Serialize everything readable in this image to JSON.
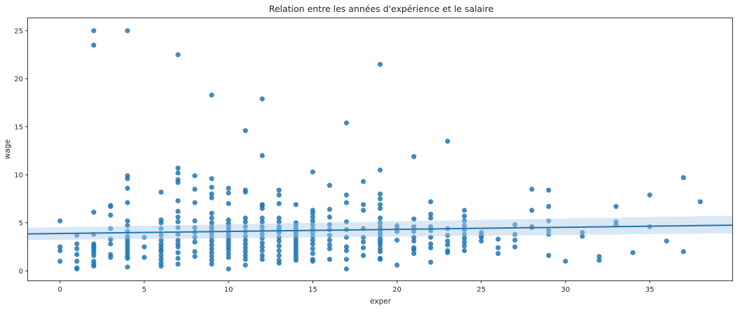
{
  "chart_data": {
    "type": "scatter",
    "title": "Relation entre les années d'expérience et le salaire",
    "xlabel": "exper",
    "ylabel": "wage",
    "xlim": [
      -1.9,
      39.9
    ],
    "ylim": [
      -1.0,
      26.3
    ],
    "xticks": [
      0,
      5,
      10,
      15,
      20,
      25,
      30,
      35
    ],
    "yticks": [
      0,
      5,
      10,
      15,
      20,
      25
    ],
    "grid": false,
    "legend": "none",
    "colors": {
      "points": "#1f77b4",
      "line": "#1f77b4",
      "band": "#aecde6"
    },
    "regression": {
      "x": [
        -1.9,
        39.9
      ],
      "y": [
        3.85,
        4.75
      ],
      "ci_lower": [
        3.2,
        3.9
      ],
      "ci_upper": [
        4.5,
        5.75
      ]
    },
    "points": [
      [
        0,
        5.2
      ],
      [
        0,
        2.5
      ],
      [
        0,
        2.1
      ],
      [
        0,
        1.0
      ],
      [
        1,
        3.7
      ],
      [
        1,
        2.8
      ],
      [
        1,
        2.3
      ],
      [
        1,
        1.7
      ],
      [
        1,
        1.0
      ],
      [
        1,
        0.3
      ],
      [
        1,
        0.2
      ],
      [
        2,
        25.0
      ],
      [
        2,
        23.5
      ],
      [
        2,
        6.1
      ],
      [
        2,
        3.8
      ],
      [
        2,
        2.8
      ],
      [
        2,
        2.6
      ],
      [
        2,
        2.4
      ],
      [
        2,
        2.2
      ],
      [
        2,
        1.9
      ],
      [
        2,
        1.6
      ],
      [
        2,
        1.0
      ],
      [
        2,
        0.7
      ],
      [
        2,
        0.5
      ],
      [
        3,
        6.8
      ],
      [
        3,
        6.7
      ],
      [
        3,
        5.8
      ],
      [
        3,
        4.4
      ],
      [
        3,
        3.3
      ],
      [
        3,
        2.8
      ],
      [
        3,
        1.7
      ],
      [
        3,
        1.4
      ],
      [
        4,
        25.0
      ],
      [
        4,
        9.9
      ],
      [
        4,
        9.6
      ],
      [
        4,
        8.6
      ],
      [
        4,
        7.1
      ],
      [
        4,
        5.2
      ],
      [
        4,
        4.7
      ],
      [
        4,
        4.1
      ],
      [
        4,
        3.6
      ],
      [
        4,
        3.3
      ],
      [
        4,
        3.0
      ],
      [
        4,
        2.7
      ],
      [
        4,
        2.4
      ],
      [
        4,
        2.1
      ],
      [
        4,
        1.8
      ],
      [
        4,
        1.5
      ],
      [
        4,
        1.3
      ],
      [
        4,
        0.4
      ],
      [
        5,
        3.5
      ],
      [
        5,
        2.5
      ],
      [
        5,
        1.4
      ],
      [
        6,
        8.2
      ],
      [
        6,
        5.3
      ],
      [
        6,
        5.0
      ],
      [
        6,
        4.4
      ],
      [
        6,
        3.7
      ],
      [
        6,
        3.2
      ],
      [
        6,
        2.8
      ],
      [
        6,
        2.5
      ],
      [
        6,
        2.2
      ],
      [
        6,
        2.0
      ],
      [
        6,
        1.6
      ],
      [
        6,
        1.2
      ],
      [
        6,
        0.8
      ],
      [
        6,
        0.5
      ],
      [
        7,
        22.5
      ],
      [
        7,
        10.7
      ],
      [
        7,
        10.2
      ],
      [
        7,
        9.5
      ],
      [
        7,
        9.2
      ],
      [
        7,
        7.3
      ],
      [
        7,
        6.2
      ],
      [
        7,
        5.6
      ],
      [
        7,
        5.1
      ],
      [
        7,
        4.5
      ],
      [
        7,
        3.8
      ],
      [
        7,
        3.2
      ],
      [
        7,
        2.8
      ],
      [
        7,
        2.5
      ],
      [
        7,
        1.9
      ],
      [
        7,
        1.3
      ],
      [
        7,
        0.7
      ],
      [
        8,
        9.9
      ],
      [
        8,
        8.5
      ],
      [
        8,
        7.1
      ],
      [
        8,
        5.2
      ],
      [
        8,
        4.5
      ],
      [
        8,
        4.0
      ],
      [
        8,
        3.5
      ],
      [
        8,
        3.0
      ],
      [
        8,
        2.0
      ],
      [
        8,
        1.5
      ],
      [
        9,
        18.3
      ],
      [
        9,
        9.6
      ],
      [
        9,
        8.7
      ],
      [
        9,
        8.0
      ],
      [
        9,
        7.6
      ],
      [
        9,
        6.0
      ],
      [
        9,
        5.5
      ],
      [
        9,
        5.0
      ],
      [
        9,
        4.6
      ],
      [
        9,
        4.3
      ],
      [
        9,
        3.9
      ],
      [
        9,
        3.5
      ],
      [
        9,
        3.1
      ],
      [
        9,
        2.7
      ],
      [
        9,
        2.3
      ],
      [
        9,
        1.9
      ],
      [
        9,
        1.5
      ],
      [
        9,
        1.1
      ],
      [
        9,
        0.7
      ],
      [
        10,
        8.6
      ],
      [
        10,
        8.1
      ],
      [
        10,
        7.0
      ],
      [
        10,
        5.3
      ],
      [
        10,
        4.9
      ],
      [
        10,
        4.6
      ],
      [
        10,
        4.3
      ],
      [
        10,
        4.0
      ],
      [
        10,
        3.7
      ],
      [
        10,
        3.4
      ],
      [
        10,
        3.1
      ],
      [
        10,
        2.8
      ],
      [
        10,
        2.5
      ],
      [
        10,
        2.2
      ],
      [
        10,
        1.8
      ],
      [
        10,
        1.4
      ],
      [
        10,
        0.2
      ],
      [
        11,
        14.6
      ],
      [
        11,
        8.4
      ],
      [
        11,
        8.2
      ],
      [
        11,
        5.5
      ],
      [
        11,
        5.1
      ],
      [
        11,
        4.6
      ],
      [
        11,
        4.1
      ],
      [
        11,
        3.6
      ],
      [
        11,
        3.2
      ],
      [
        11,
        2.8
      ],
      [
        11,
        2.4
      ],
      [
        11,
        2.0
      ],
      [
        11,
        1.6
      ],
      [
        11,
        1.2
      ],
      [
        11,
        0.6
      ],
      [
        12,
        17.9
      ],
      [
        12,
        12.0
      ],
      [
        12,
        6.9
      ],
      [
        12,
        6.8
      ],
      [
        12,
        6.5
      ],
      [
        12,
        5.5
      ],
      [
        12,
        5.1
      ],
      [
        12,
        4.6
      ],
      [
        12,
        4.2
      ],
      [
        12,
        3.8
      ],
      [
        12,
        3.4
      ],
      [
        12,
        2.9
      ],
      [
        12,
        2.5
      ],
      [
        12,
        2.1
      ],
      [
        12,
        1.6
      ],
      [
        12,
        1.2
      ],
      [
        13,
        8.4
      ],
      [
        13,
        7.9
      ],
      [
        13,
        7.0
      ],
      [
        13,
        5.5
      ],
      [
        13,
        5.1
      ],
      [
        13,
        4.6
      ],
      [
        13,
        4.3
      ],
      [
        13,
        4.0
      ],
      [
        13,
        3.5
      ],
      [
        13,
        3.1
      ],
      [
        13,
        2.6
      ],
      [
        13,
        2.1
      ],
      [
        13,
        1.6
      ],
      [
        13,
        1.1
      ],
      [
        13,
        0.8
      ],
      [
        14,
        6.9
      ],
      [
        14,
        5.0
      ],
      [
        14,
        4.7
      ],
      [
        14,
        4.4
      ],
      [
        14,
        4.1
      ],
      [
        14,
        3.8
      ],
      [
        14,
        3.5
      ],
      [
        14,
        3.2
      ],
      [
        14,
        2.9
      ],
      [
        14,
        2.6
      ],
      [
        14,
        2.3
      ],
      [
        14,
        2.0
      ],
      [
        14,
        1.7
      ],
      [
        14,
        1.4
      ],
      [
        14,
        1.1
      ],
      [
        15,
        10.3
      ],
      [
        15,
        6.3
      ],
      [
        15,
        6.0
      ],
      [
        15,
        5.6
      ],
      [
        15,
        5.2
      ],
      [
        15,
        4.8
      ],
      [
        15,
        4.4
      ],
      [
        15,
        4.0
      ],
      [
        15,
        3.6
      ],
      [
        15,
        3.2
      ],
      [
        15,
        2.8
      ],
      [
        15,
        2.3
      ],
      [
        15,
        1.8
      ],
      [
        15,
        1.2
      ],
      [
        15,
        1.0
      ],
      [
        16,
        8.9
      ],
      [
        16,
        6.4
      ],
      [
        16,
        5.6
      ],
      [
        16,
        4.8
      ],
      [
        16,
        4.3
      ],
      [
        16,
        3.7
      ],
      [
        16,
        3.2
      ],
      [
        16,
        2.7
      ],
      [
        16,
        2.3
      ],
      [
        16,
        1.2
      ],
      [
        17,
        15.4
      ],
      [
        17,
        7.9
      ],
      [
        17,
        7.1
      ],
      [
        17,
        5.1
      ],
      [
        17,
        4.3
      ],
      [
        17,
        3.5
      ],
      [
        17,
        2.5
      ],
      [
        17,
        2.1
      ],
      [
        17,
        1.2
      ],
      [
        17,
        0.2
      ],
      [
        18,
        9.3
      ],
      [
        18,
        6.9
      ],
      [
        18,
        6.3
      ],
      [
        18,
        4.4
      ],
      [
        18,
        3.5
      ],
      [
        18,
        3.0
      ],
      [
        18,
        2.4
      ],
      [
        18,
        1.6
      ],
      [
        19,
        21.5
      ],
      [
        19,
        10.5
      ],
      [
        19,
        8.0
      ],
      [
        19,
        7.5
      ],
      [
        19,
        6.9
      ],
      [
        19,
        6.5
      ],
      [
        19,
        5.5
      ],
      [
        19,
        5.0
      ],
      [
        19,
        4.6
      ],
      [
        19,
        4.3
      ],
      [
        19,
        4.0
      ],
      [
        19,
        3.7
      ],
      [
        19,
        3.3
      ],
      [
        19,
        3.0
      ],
      [
        19,
        2.7
      ],
      [
        19,
        2.3
      ],
      [
        19,
        2.0
      ],
      [
        19,
        1.3
      ],
      [
        19,
        1.2
      ],
      [
        20,
        4.7
      ],
      [
        20,
        4.4
      ],
      [
        20,
        4.1
      ],
      [
        20,
        3.2
      ],
      [
        20,
        0.6
      ],
      [
        21,
        11.9
      ],
      [
        21,
        5.4
      ],
      [
        21,
        4.6
      ],
      [
        21,
        4.1
      ],
      [
        21,
        3.5
      ],
      [
        21,
        3.1
      ],
      [
        21,
        2.4
      ],
      [
        21,
        2.2
      ],
      [
        21,
        1.8
      ],
      [
        22,
        7.2
      ],
      [
        22,
        5.9
      ],
      [
        22,
        5.5
      ],
      [
        22,
        4.6
      ],
      [
        22,
        4.2
      ],
      [
        22,
        3.5
      ],
      [
        22,
        2.8
      ],
      [
        22,
        2.4
      ],
      [
        22,
        0.9
      ],
      [
        23,
        13.5
      ],
      [
        23,
        4.4
      ],
      [
        23,
        3.7
      ],
      [
        23,
        3.1
      ],
      [
        23,
        2.7
      ],
      [
        23,
        2.1
      ],
      [
        23,
        1.9
      ],
      [
        24,
        6.3
      ],
      [
        24,
        5.7
      ],
      [
        24,
        5.2
      ],
      [
        24,
        4.7
      ],
      [
        24,
        4.3
      ],
      [
        24,
        3.8
      ],
      [
        24,
        3.4
      ],
      [
        24,
        3.0
      ],
      [
        24,
        2.6
      ],
      [
        24,
        2.1
      ],
      [
        25,
        4.0
      ],
      [
        25,
        3.7
      ],
      [
        25,
        3.5
      ],
      [
        25,
        3.1
      ],
      [
        26,
        3.3
      ],
      [
        26,
        2.4
      ],
      [
        26,
        1.8
      ],
      [
        27,
        4.8
      ],
      [
        27,
        3.8
      ],
      [
        27,
        3.2
      ],
      [
        27,
        2.5
      ],
      [
        28,
        8.5
      ],
      [
        28,
        6.3
      ],
      [
        28,
        4.6
      ],
      [
        28,
        4.5
      ],
      [
        29,
        8.4
      ],
      [
        29,
        6.7
      ],
      [
        29,
        5.2
      ],
      [
        29,
        4.2
      ],
      [
        29,
        3.8
      ],
      [
        29,
        1.6
      ],
      [
        30,
        1.0
      ],
      [
        31,
        4.0
      ],
      [
        31,
        3.6
      ],
      [
        32,
        1.5
      ],
      [
        32,
        1.1
      ],
      [
        33,
        6.7
      ],
      [
        33,
        5.1
      ],
      [
        33,
        4.8
      ],
      [
        34,
        1.9
      ],
      [
        35,
        7.9
      ],
      [
        35,
        4.6
      ],
      [
        36,
        3.1
      ],
      [
        37,
        9.7
      ],
      [
        37,
        2.0
      ],
      [
        38,
        7.2
      ]
    ]
  }
}
